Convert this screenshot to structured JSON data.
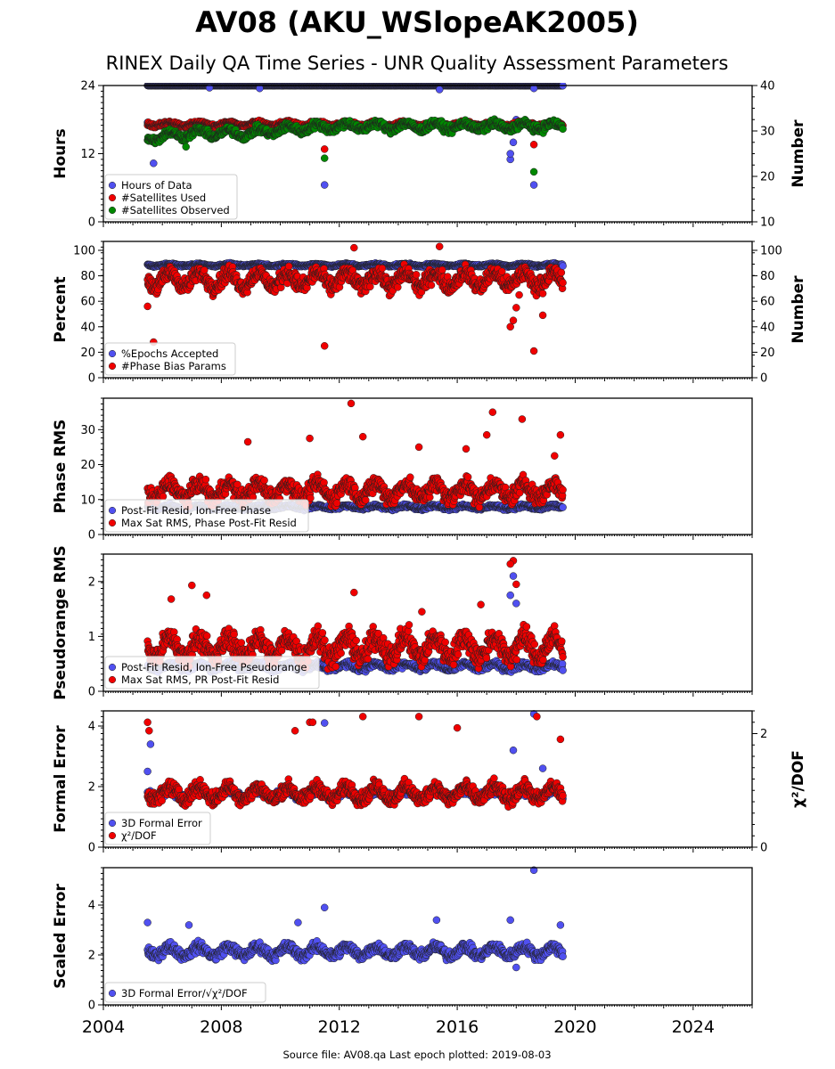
{
  "title": "AV08 (AKU_WSlopeAK2005)",
  "subtitle": "RINEX Daily QA Time Series - UNR Quality Assessment Parameters",
  "footer": "Source file: AV08.qa Last epoch plotted: 2019-08-03",
  "colors": {
    "blue": "#5050f0",
    "red": "#f00000",
    "green": "#008800",
    "edge": "#202020"
  },
  "chart_data": [
    {
      "id": "hours",
      "type": "scatter",
      "ylabel": "Hours",
      "ylabel_right": "Number",
      "ylim": [
        0,
        24
      ],
      "yticks": [
        "0",
        "12",
        "24"
      ],
      "ylim_right": [
        10,
        40
      ],
      "yticks_right": [
        "10",
        "20",
        "30",
        "40"
      ],
      "x_range": [
        2004,
        2026
      ],
      "legend": [
        "Hours of Data",
        "#Satellites Used",
        "#Satellites Observed"
      ],
      "legend_position": "lower-left",
      "series": [
        {
          "name": "Hours of Data",
          "axis": "left",
          "color": "blue",
          "start": 2005.5,
          "end": 2019.58,
          "base": 24.0,
          "spread": 0.05,
          "outliers": [
            [
              2005.5,
              17.5
            ],
            [
              2005.7,
              10.3
            ],
            [
              2011.5,
              6.5
            ],
            [
              2017.8,
              11.0
            ],
            [
              2017.8,
              12.0
            ],
            [
              2017.9,
              14.0
            ],
            [
              2018.0,
              18.0
            ],
            [
              2018.6,
              6.5
            ],
            [
              2007.6,
              23.6
            ],
            [
              2009.3,
              23.5
            ],
            [
              2015.4,
              23.3
            ],
            [
              2018.6,
              23.5
            ]
          ]
        },
        {
          "name": "#Satellites Used",
          "axis": "right",
          "color": "red",
          "start": 2005.5,
          "end": 2019.58,
          "base": 31.5,
          "spread": 0.6,
          "outliers": [
            [
              2009.4,
              30.0
            ],
            [
              2011.5,
              26.0
            ],
            [
              2018.6,
              27.0
            ]
          ]
        },
        {
          "name": "#Satellites Observed",
          "axis": "right",
          "color": "green",
          "start": 2005.5,
          "end": 2019.58,
          "base": 31.0,
          "spread": 1.2,
          "trend": [
            [
              2005.5,
              28.5
            ],
            [
              2007.0,
              29.5
            ],
            [
              2009.0,
              29.5
            ],
            [
              2010.5,
              30.5
            ],
            [
              2012.0,
              31.0
            ],
            [
              2019.58,
              31.0
            ]
          ],
          "outliers": [
            [
              2011.5,
              24.0
            ],
            [
              2018.6,
              21.0
            ],
            [
              2006.8,
              26.5
            ]
          ]
        }
      ]
    },
    {
      "id": "percent",
      "type": "scatter",
      "ylabel": "Percent",
      "ylabel_right": "Number",
      "ylim": [
        0,
        107
      ],
      "yticks": [
        "0",
        "20",
        "40",
        "60",
        "80",
        "100"
      ],
      "ylim_right": [
        0,
        107
      ],
      "yticks_right": [
        "0",
        "20",
        "40",
        "60",
        "80",
        "100"
      ],
      "x_range": [
        2004,
        2026
      ],
      "legend": [
        "%Epochs Accepted",
        "#Phase Bias Params"
      ],
      "legend_position": "lower-left",
      "series": [
        {
          "name": "%Epochs Accepted",
          "axis": "left",
          "color": "blue",
          "start": 2005.5,
          "end": 2019.58,
          "base": 88.5,
          "spread": 1.2,
          "outliers": []
        },
        {
          "name": "#Phase Bias Params",
          "axis": "right",
          "color": "red",
          "start": 2005.5,
          "end": 2019.58,
          "base": 77,
          "spread": 9,
          "outliers": [
            [
              2005.7,
              28.0
            ],
            [
              2011.5,
              25.0
            ],
            [
              2017.8,
              40.0
            ],
            [
              2017.9,
              45.0
            ],
            [
              2018.0,
              55.0
            ],
            [
              2018.1,
              65.0
            ],
            [
              2018.6,
              21.0
            ],
            [
              2018.9,
              49.0
            ],
            [
              2015.4,
              103.0
            ],
            [
              2012.5,
              102.0
            ],
            [
              2005.5,
              56.0
            ]
          ]
        }
      ]
    },
    {
      "id": "phase",
      "type": "scatter",
      "ylabel": "Phase RMS",
      "ylim": [
        0,
        39
      ],
      "yticks": [
        "0",
        "10",
        "20",
        "30"
      ],
      "x_range": [
        2004,
        2026
      ],
      "legend": [
        "Post-Fit Resid, Ion-Free Phase",
        "Max Sat RMS, Phase Post-Fit Resid"
      ],
      "legend_position": "lower-left",
      "series": [
        {
          "name": "Post-Fit Resid, Ion-Free Phase",
          "axis": "left",
          "color": "blue",
          "start": 2005.5,
          "end": 2019.58,
          "base": 7.8,
          "spread": 0.7,
          "outliers": []
        },
        {
          "name": "Max Sat RMS, Phase Post-Fit Resid",
          "axis": "left",
          "color": "red",
          "start": 2005.5,
          "end": 2019.58,
          "base": 12.5,
          "spread": 3.5,
          "outliers": [
            [
              2012.4,
              37.5
            ],
            [
              2017.2,
              35.0
            ],
            [
              2018.2,
              33.0
            ],
            [
              2019.5,
              28.5
            ],
            [
              2017.0,
              28.5
            ],
            [
              2012.8,
              28.0
            ],
            [
              2011.0,
              27.5
            ],
            [
              2008.9,
              26.5
            ],
            [
              2014.7,
              25.0
            ],
            [
              2016.3,
              24.5
            ],
            [
              2019.3,
              22.5
            ]
          ]
        }
      ]
    },
    {
      "id": "pseudorange",
      "type": "scatter",
      "ylabel": "Pseudorange RMS",
      "ylim": [
        0,
        2.5
      ],
      "yticks": [
        "0",
        "1",
        "2"
      ],
      "x_range": [
        2004,
        2026
      ],
      "legend": [
        "Post-Fit Resid, Ion-Free Pseudorange",
        "Max Sat RMS, PR Post-Fit Resid"
      ],
      "legend_position": "lower-left",
      "series": [
        {
          "name": "Post-Fit Resid, Ion-Free Pseudorange",
          "axis": "left",
          "color": "blue",
          "start": 2005.5,
          "end": 2019.58,
          "base": 0.45,
          "spread": 0.08,
          "outliers": [
            [
              2017.9,
              2.1
            ],
            [
              2017.8,
              1.75
            ],
            [
              2018.0,
              1.6
            ]
          ]
        },
        {
          "name": "Max Sat RMS, PR Post-Fit Resid",
          "axis": "left",
          "color": "red",
          "start": 2005.5,
          "end": 2019.58,
          "base": 0.8,
          "spread": 0.3,
          "outliers": [
            [
              2017.9,
              2.38
            ],
            [
              2017.8,
              2.32
            ],
            [
              2018.0,
              1.95
            ],
            [
              2007.0,
              1.93
            ],
            [
              2007.5,
              1.75
            ],
            [
              2012.5,
              1.8
            ],
            [
              2006.3,
              1.68
            ],
            [
              2016.8,
              1.58
            ],
            [
              2014.8,
              1.45
            ]
          ]
        }
      ]
    },
    {
      "id": "formal",
      "type": "scatter",
      "ylabel": "Formal Error",
      "ylabel_right": "χ²/DOF",
      "ylim": [
        0,
        4.5
      ],
      "yticks": [
        "0",
        "2",
        "4"
      ],
      "ylim_right": [
        0,
        2.4
      ],
      "yticks_right": [
        "0",
        "2"
      ],
      "x_range": [
        2004,
        2026
      ],
      "legend": [
        "3D Formal Error",
        "χ²/DOF"
      ],
      "legend_position": "lower-left",
      "series": [
        {
          "name": "3D Formal Error",
          "axis": "left",
          "color": "blue",
          "start": 2005.5,
          "end": 2019.58,
          "base": 1.75,
          "spread": 0.2,
          "outliers": [
            [
              2005.6,
              3.4
            ],
            [
              2011.5,
              4.1
            ],
            [
              2018.6,
              4.4
            ],
            [
              2017.9,
              3.2
            ],
            [
              2018.9,
              2.6
            ],
            [
              2005.5,
              2.5
            ]
          ]
        },
        {
          "name": "χ²/DOF",
          "axis": "right",
          "color": "red",
          "start": 2005.5,
          "end": 2019.58,
          "base": 0.95,
          "spread": 0.18,
          "outliers": [
            [
              2005.5,
              2.2
            ],
            [
              2011.0,
              2.2
            ],
            [
              2011.1,
              2.2
            ],
            [
              2012.8,
              2.3
            ],
            [
              2014.7,
              2.3
            ],
            [
              2018.7,
              2.3
            ],
            [
              2016.0,
              2.1
            ],
            [
              2005.55,
              2.05
            ],
            [
              2010.5,
              2.05
            ],
            [
              2019.5,
              1.9
            ]
          ]
        }
      ]
    },
    {
      "id": "scaled",
      "type": "scatter",
      "ylabel": "Scaled Error",
      "ylim": [
        0,
        5.5
      ],
      "yticks": [
        "0",
        "2",
        "4"
      ],
      "x_range": [
        2004,
        2026
      ],
      "legend": [
        "3D Formal Error/√χ²/DOF"
      ],
      "legend_position": "lower-left",
      "series": [
        {
          "name": "3D Formal Error/√χ²/DOF",
          "axis": "left",
          "color": "blue",
          "start": 2005.5,
          "end": 2019.58,
          "base": 2.15,
          "spread": 0.3,
          "outliers": [
            [
              2018.6,
              5.4
            ],
            [
              2011.5,
              3.9
            ],
            [
              2005.5,
              3.3
            ],
            [
              2015.3,
              3.4
            ],
            [
              2017.8,
              3.4
            ],
            [
              2019.5,
              3.2
            ],
            [
              2006.9,
              3.2
            ],
            [
              2010.6,
              3.3
            ],
            [
              2018.0,
              1.5
            ]
          ]
        }
      ]
    }
  ],
  "x_axis": {
    "ticks": [
      "2004",
      "2008",
      "2012",
      "2016",
      "2020",
      "2024"
    ],
    "range": [
      2004,
      2026
    ]
  }
}
